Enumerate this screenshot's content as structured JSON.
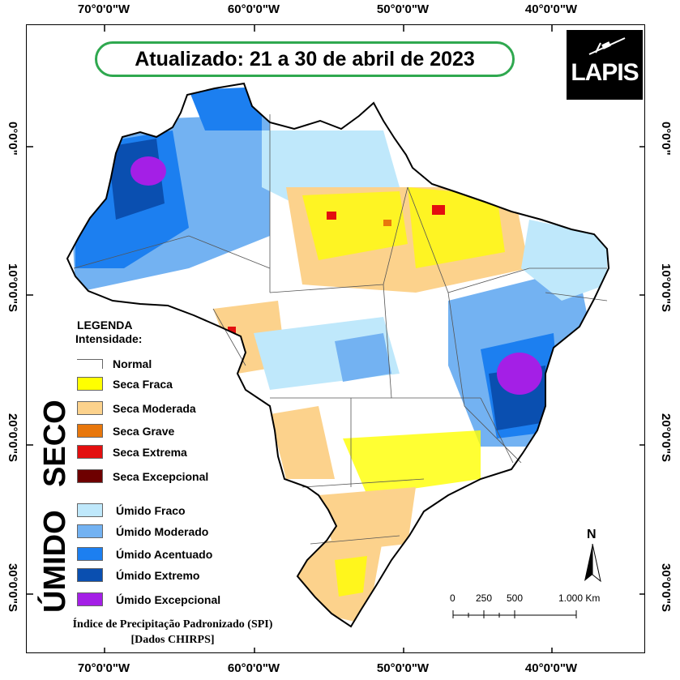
{
  "title": "Atualizado: 21 a 30 de abril de 2023",
  "logo_text": "LAPIS",
  "coords": {
    "longitudes": [
      "70°0'0\"W",
      "60°0'0\"W",
      "50°0'0\"W",
      "40°0'0\"W"
    ],
    "latitudes": [
      "0°0'0\"",
      "10°0'0\"S",
      "20°0'0\"S",
      "30°0'0\"S"
    ]
  },
  "legend": {
    "title": "LEGENDA",
    "subtitle": "Intensidade:",
    "normal": {
      "label": "Normal",
      "color": "#ffffff"
    },
    "seco_heading": "SECO",
    "seco": [
      {
        "label": "Seca Fraca",
        "color": "#ffff00"
      },
      {
        "label": "Seca Moderada",
        "color": "#fcd28c"
      },
      {
        "label": "Seca Grave",
        "color": "#e8770c"
      },
      {
        "label": "Seca Extrema",
        "color": "#e30f0f"
      },
      {
        "label": "Seca Excepcional",
        "color": "#6e0000"
      }
    ],
    "umido_heading": "ÚMIDO",
    "umido": [
      {
        "label": "Úmido Fraco",
        "color": "#bfe8fb"
      },
      {
        "label": "Úmido Moderado",
        "color": "#73b2f2"
      },
      {
        "label": "Úmido Acentuado",
        "color": "#1c7ff0"
      },
      {
        "label": "Úmido Extremo",
        "color": "#0a4fb0"
      },
      {
        "label": "Úmido Excepcional",
        "color": "#a41fe6"
      }
    ]
  },
  "source": {
    "line1": "Índice de Precipitação Padronizado (SPI)",
    "line2": "[Dados CHIRPS]"
  },
  "scale": {
    "ticks": [
      "0",
      "250",
      "500",
      "1.000 Km"
    ]
  },
  "north_label": "N"
}
